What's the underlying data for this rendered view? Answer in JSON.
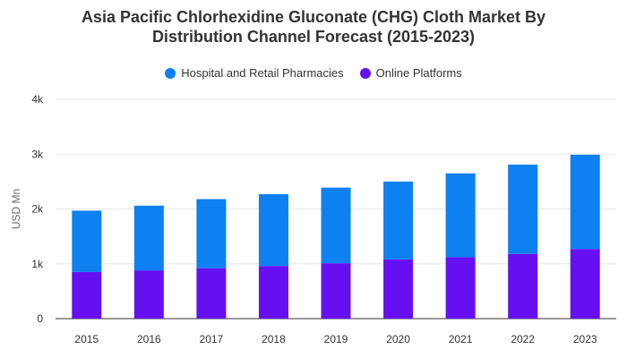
{
  "chart_data": {
    "type": "bar",
    "stacked": true,
    "title_line1": "Asia Pacific Chlorhexidine Gluconate (CHG) Cloth Market By",
    "title_line2": "Distribution Channel Forecast (2015-2023)",
    "ylabel": "USD Mn",
    "xlabel": "",
    "categories": [
      "2015",
      "2016",
      "2017",
      "2018",
      "2019",
      "2020",
      "2021",
      "2022",
      "2023"
    ],
    "series": [
      {
        "name": "Online Platforms",
        "color": "#6610f2",
        "values": [
          850,
          880,
          920,
          960,
          1010,
          1080,
          1120,
          1180,
          1270
        ]
      },
      {
        "name": "Hospital and Retail Pharmacies",
        "color": "#0d80f2",
        "values": [
          1120,
          1180,
          1260,
          1310,
          1380,
          1420,
          1530,
          1630,
          1720
        ]
      }
    ],
    "legend_order": [
      "Hospital and Retail Pharmacies",
      "Online Platforms"
    ],
    "ylim": [
      0,
      4000
    ],
    "yticks": [
      0,
      1000,
      2000,
      3000,
      4000
    ],
    "ytick_labels": [
      "0",
      "1k",
      "2k",
      "3k",
      "4k"
    ],
    "grid": true,
    "legend_position": "top-center"
  }
}
